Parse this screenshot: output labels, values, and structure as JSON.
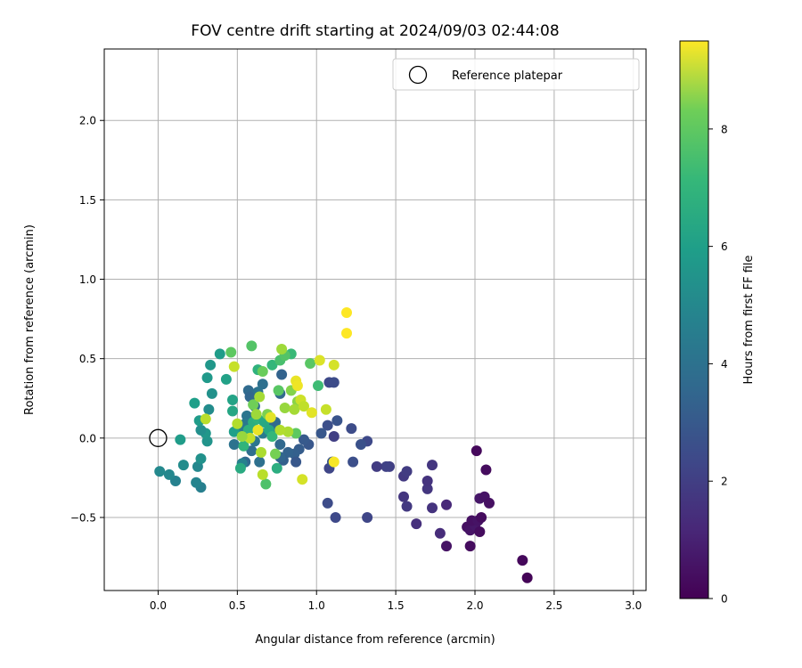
{
  "chart_data": {
    "type": "scatter",
    "title": "FOV centre drift starting at 2024/09/03 02:44:08",
    "xlabel": "Angular distance from reference (arcmin)",
    "ylabel": "Rotation from reference (arcmin)",
    "xlim": [
      -0.34,
      3.08
    ],
    "ylim": [
      -0.96,
      2.45
    ],
    "xticks": [
      0.0,
      0.5,
      1.0,
      1.5,
      2.0,
      2.5,
      3.0
    ],
    "xtick_labels": [
      "0.0",
      "0.5",
      "1.0",
      "1.5",
      "2.0",
      "2.5",
      "3.0"
    ],
    "yticks": [
      -0.5,
      0.0,
      0.5,
      1.0,
      1.5,
      2.0
    ],
    "ytick_labels": [
      "−0.5",
      "0.0",
      "0.5",
      "1.0",
      "1.5",
      "2.0"
    ],
    "grid": true,
    "legend": {
      "placement": "top-right",
      "entries": [
        "Reference platepar"
      ]
    },
    "reference_point": {
      "x": 0.0,
      "y": 0.0,
      "name": "Reference platepar"
    },
    "colorbar": {
      "label": "Hours from first FF file",
      "range": [
        0,
        9.5
      ],
      "ticks": [
        0,
        2,
        4,
        6,
        8
      ],
      "tick_labels": [
        "0",
        "2",
        "4",
        "6",
        "8"
      ],
      "colormap": "viridis"
    },
    "points": [
      {
        "x": 2.33,
        "y": -0.88,
        "t": 0.1
      },
      {
        "x": 2.3,
        "y": -0.77,
        "t": 0.2
      },
      {
        "x": 1.97,
        "y": -0.68,
        "t": 0.3
      },
      {
        "x": 1.82,
        "y": -0.68,
        "t": 0.5
      },
      {
        "x": 1.95,
        "y": -0.56,
        "t": 0.4
      },
      {
        "x": 1.97,
        "y": -0.58,
        "t": 0.5
      },
      {
        "x": 2.0,
        "y": -0.55,
        "t": 0.6
      },
      {
        "x": 2.03,
        "y": -0.59,
        "t": 0.3
      },
      {
        "x": 1.98,
        "y": -0.52,
        "t": 0.4
      },
      {
        "x": 2.02,
        "y": -0.52,
        "t": 0.5
      },
      {
        "x": 2.04,
        "y": -0.5,
        "t": 0.3
      },
      {
        "x": 2.03,
        "y": -0.38,
        "t": 0.6
      },
      {
        "x": 2.06,
        "y": -0.37,
        "t": 0.5
      },
      {
        "x": 2.09,
        "y": -0.41,
        "t": 0.4
      },
      {
        "x": 2.07,
        "y": -0.2,
        "t": 0.3
      },
      {
        "x": 2.01,
        "y": -0.08,
        "t": 0.2
      },
      {
        "x": 1.78,
        "y": -0.6,
        "t": 1.2
      },
      {
        "x": 1.82,
        "y": -0.42,
        "t": 1.1
      },
      {
        "x": 1.63,
        "y": -0.54,
        "t": 1.3
      },
      {
        "x": 1.73,
        "y": -0.44,
        "t": 1.4
      },
      {
        "x": 1.7,
        "y": -0.32,
        "t": 1.5
      },
      {
        "x": 1.7,
        "y": -0.27,
        "t": 1.4
      },
      {
        "x": 1.73,
        "y": -0.17,
        "t": 1.5
      },
      {
        "x": 1.57,
        "y": -0.43,
        "t": 1.6
      },
      {
        "x": 1.55,
        "y": -0.37,
        "t": 1.5
      },
      {
        "x": 1.55,
        "y": -0.24,
        "t": 1.6
      },
      {
        "x": 1.57,
        "y": -0.21,
        "t": 1.7
      },
      {
        "x": 1.46,
        "y": -0.18,
        "t": 1.8
      },
      {
        "x": 1.44,
        "y": -0.18,
        "t": 1.9
      },
      {
        "x": 1.38,
        "y": -0.18,
        "t": 1.7
      },
      {
        "x": 1.32,
        "y": -0.5,
        "t": 2.0
      },
      {
        "x": 1.12,
        "y": -0.5,
        "t": 2.1
      },
      {
        "x": 1.07,
        "y": -0.41,
        "t": 2.2
      },
      {
        "x": 1.23,
        "y": -0.15,
        "t": 2.3
      },
      {
        "x": 1.32,
        "y": -0.02,
        "t": 2.1
      },
      {
        "x": 1.28,
        "y": -0.04,
        "t": 2.4
      },
      {
        "x": 1.22,
        "y": 0.06,
        "t": 2.2
      },
      {
        "x": 1.13,
        "y": 0.11,
        "t": 2.5
      },
      {
        "x": 1.11,
        "y": 0.01,
        "t": 1.8
      },
      {
        "x": 1.07,
        "y": 0.08,
        "t": 2.3
      },
      {
        "x": 1.08,
        "y": -0.19,
        "t": 2.0
      },
      {
        "x": 1.1,
        "y": -0.15,
        "t": 2.5
      },
      {
        "x": 1.08,
        "y": 0.35,
        "t": 2.1
      },
      {
        "x": 1.11,
        "y": 0.35,
        "t": 2.2
      },
      {
        "x": 1.03,
        "y": 0.03,
        "t": 2.6
      },
      {
        "x": 0.95,
        "y": -0.04,
        "t": 2.6
      },
      {
        "x": 0.92,
        "y": -0.01,
        "t": 2.7
      },
      {
        "x": 0.89,
        "y": -0.07,
        "t": 2.8
      },
      {
        "x": 0.86,
        "y": -0.1,
        "t": 2.9
      },
      {
        "x": 0.87,
        "y": -0.15,
        "t": 2.6
      },
      {
        "x": 0.82,
        "y": -0.09,
        "t": 3.0
      },
      {
        "x": 0.79,
        "y": -0.14,
        "t": 2.9
      },
      {
        "x": 0.77,
        "y": -0.12,
        "t": 3.1
      },
      {
        "x": 0.77,
        "y": -0.04,
        "t": 3.2
      },
      {
        "x": 0.78,
        "y": 0.4,
        "t": 3.0
      },
      {
        "x": 0.77,
        "y": 0.28,
        "t": 3.2
      },
      {
        "x": 0.74,
        "y": 0.1,
        "t": 3.3
      },
      {
        "x": 0.72,
        "y": 0.05,
        "t": 3.4
      },
      {
        "x": 0.7,
        "y": 0.08,
        "t": 3.2
      },
      {
        "x": 0.66,
        "y": 0.34,
        "t": 3.5
      },
      {
        "x": 0.63,
        "y": 0.29,
        "t": 3.6
      },
      {
        "x": 0.61,
        "y": 0.2,
        "t": 3.4
      },
      {
        "x": 0.57,
        "y": 0.3,
        "t": 3.3
      },
      {
        "x": 0.58,
        "y": 0.26,
        "t": 3.1
      },
      {
        "x": 0.56,
        "y": 0.14,
        "t": 3.7
      },
      {
        "x": 0.55,
        "y": 0.09,
        "t": 3.8
      },
      {
        "x": 0.52,
        "y": 0.04,
        "t": 3.9
      },
      {
        "x": 0.48,
        "y": -0.04,
        "t": 3.6
      },
      {
        "x": 0.55,
        "y": -0.15,
        "t": 3.2
      },
      {
        "x": 0.59,
        "y": -0.08,
        "t": 3.4
      },
      {
        "x": 0.64,
        "y": -0.15,
        "t": 3.5
      },
      {
        "x": 0.61,
        "y": -0.02,
        "t": 3.7
      },
      {
        "x": 0.66,
        "y": 0.03,
        "t": 3.9
      },
      {
        "x": 0.53,
        "y": -0.16,
        "t": 4.2
      },
      {
        "x": 0.27,
        "y": -0.31,
        "t": 4.1
      },
      {
        "x": 0.24,
        "y": -0.28,
        "t": 4.3
      },
      {
        "x": 0.11,
        "y": -0.27,
        "t": 4.2
      },
      {
        "x": 0.07,
        "y": -0.23,
        "t": 4.4
      },
      {
        "x": 0.01,
        "y": -0.21,
        "t": 4.5
      },
      {
        "x": 0.16,
        "y": -0.17,
        "t": 4.6
      },
      {
        "x": 0.25,
        "y": -0.18,
        "t": 4.4
      },
      {
        "x": 0.27,
        "y": -0.13,
        "t": 4.8
      },
      {
        "x": 0.31,
        "y": -0.02,
        "t": 4.9
      },
      {
        "x": 0.3,
        "y": 0.03,
        "t": 5.0
      },
      {
        "x": 0.27,
        "y": 0.05,
        "t": 4.7
      },
      {
        "x": 0.26,
        "y": 0.11,
        "t": 5.2
      },
      {
        "x": 0.32,
        "y": 0.18,
        "t": 4.6
      },
      {
        "x": 0.23,
        "y": 0.22,
        "t": 5.3
      },
      {
        "x": 0.34,
        "y": 0.28,
        "t": 4.8
      },
      {
        "x": 0.31,
        "y": 0.38,
        "t": 5.1
      },
      {
        "x": 0.33,
        "y": 0.46,
        "t": 5.0
      },
      {
        "x": 0.39,
        "y": 0.53,
        "t": 5.2
      },
      {
        "x": 0.43,
        "y": 0.37,
        "t": 5.4
      },
      {
        "x": 0.47,
        "y": 0.24,
        "t": 5.5
      },
      {
        "x": 0.47,
        "y": 0.17,
        "t": 5.6
      },
      {
        "x": 0.48,
        "y": 0.04,
        "t": 5.3
      },
      {
        "x": 0.14,
        "y": -0.01,
        "t": 5.2
      },
      {
        "x": 0.52,
        "y": -0.19,
        "t": 5.8
      },
      {
        "x": 0.54,
        "y": -0.05,
        "t": 6.2
      },
      {
        "x": 0.57,
        "y": 0.05,
        "t": 6.0
      },
      {
        "x": 0.6,
        "y": 0.1,
        "t": 5.9
      },
      {
        "x": 0.63,
        "y": 0.12,
        "t": 6.1
      },
      {
        "x": 0.67,
        "y": 0.1,
        "t": 5.7
      },
      {
        "x": 0.7,
        "y": 0.05,
        "t": 5.6
      },
      {
        "x": 0.72,
        "y": 0.01,
        "t": 6.3
      },
      {
        "x": 0.75,
        "y": -0.19,
        "t": 5.9
      },
      {
        "x": 0.68,
        "y": -0.29,
        "t": 6.8
      },
      {
        "x": 0.63,
        "y": 0.43,
        "t": 6.1
      },
      {
        "x": 0.72,
        "y": 0.46,
        "t": 6.3
      },
      {
        "x": 0.77,
        "y": 0.49,
        "t": 6.7
      },
      {
        "x": 0.84,
        "y": 0.53,
        "t": 6.4
      },
      {
        "x": 0.8,
        "y": 0.52,
        "t": 6.9
      },
      {
        "x": 0.96,
        "y": 0.47,
        "t": 7.0
      },
      {
        "x": 1.01,
        "y": 0.33,
        "t": 6.5
      },
      {
        "x": 0.59,
        "y": 0.58,
        "t": 6.9
      },
      {
        "x": 0.46,
        "y": 0.54,
        "t": 7.1
      },
      {
        "x": 0.66,
        "y": 0.42,
        "t": 7.3
      },
      {
        "x": 0.76,
        "y": 0.3,
        "t": 7.0
      },
      {
        "x": 0.6,
        "y": 0.21,
        "t": 7.4
      },
      {
        "x": 0.69,
        "y": 0.15,
        "t": 7.6
      },
      {
        "x": 0.87,
        "y": 0.03,
        "t": 7.1
      },
      {
        "x": 0.74,
        "y": -0.1,
        "t": 7.5
      },
      {
        "x": 0.88,
        "y": 0.23,
        "t": 7.8
      },
      {
        "x": 0.84,
        "y": 0.3,
        "t": 7.7
      },
      {
        "x": 0.8,
        "y": 0.19,
        "t": 8.0
      },
      {
        "x": 0.78,
        "y": 0.56,
        "t": 8.1
      },
      {
        "x": 0.86,
        "y": 0.18,
        "t": 8.2
      },
      {
        "x": 0.82,
        "y": 0.04,
        "t": 8.3
      },
      {
        "x": 0.77,
        "y": 0.05,
        "t": 8.4
      },
      {
        "x": 0.64,
        "y": 0.26,
        "t": 8.2
      },
      {
        "x": 0.62,
        "y": 0.15,
        "t": 8.1
      },
      {
        "x": 0.66,
        "y": -0.23,
        "t": 8.5
      },
      {
        "x": 0.65,
        "y": -0.09,
        "t": 8.3
      },
      {
        "x": 0.58,
        "y": 0.0,
        "t": 8.6
      },
      {
        "x": 0.53,
        "y": 0.01,
        "t": 8.0
      },
      {
        "x": 0.5,
        "y": 0.09,
        "t": 8.4
      },
      {
        "x": 0.48,
        "y": 0.45,
        "t": 8.7
      },
      {
        "x": 0.3,
        "y": 0.12,
        "t": 8.5
      },
      {
        "x": 0.9,
        "y": 0.24,
        "t": 8.8
      },
      {
        "x": 0.92,
        "y": 0.2,
        "t": 8.6
      },
      {
        "x": 0.91,
        "y": -0.26,
        "t": 8.9
      },
      {
        "x": 1.06,
        "y": 0.18,
        "t": 8.7
      },
      {
        "x": 1.11,
        "y": 0.46,
        "t": 8.9
      },
      {
        "x": 1.02,
        "y": 0.49,
        "t": 9.0
      },
      {
        "x": 0.97,
        "y": 0.16,
        "t": 9.1
      },
      {
        "x": 0.87,
        "y": 0.36,
        "t": 9.2
      },
      {
        "x": 0.88,
        "y": 0.33,
        "t": 9.3
      },
      {
        "x": 0.71,
        "y": 0.13,
        "t": 9.1
      },
      {
        "x": 0.63,
        "y": 0.05,
        "t": 9.2
      },
      {
        "x": 1.11,
        "y": -0.15,
        "t": 9.4
      },
      {
        "x": 1.19,
        "y": 0.79,
        "t": 9.5
      },
      {
        "x": 1.19,
        "y": 0.66,
        "t": 9.5
      }
    ]
  }
}
